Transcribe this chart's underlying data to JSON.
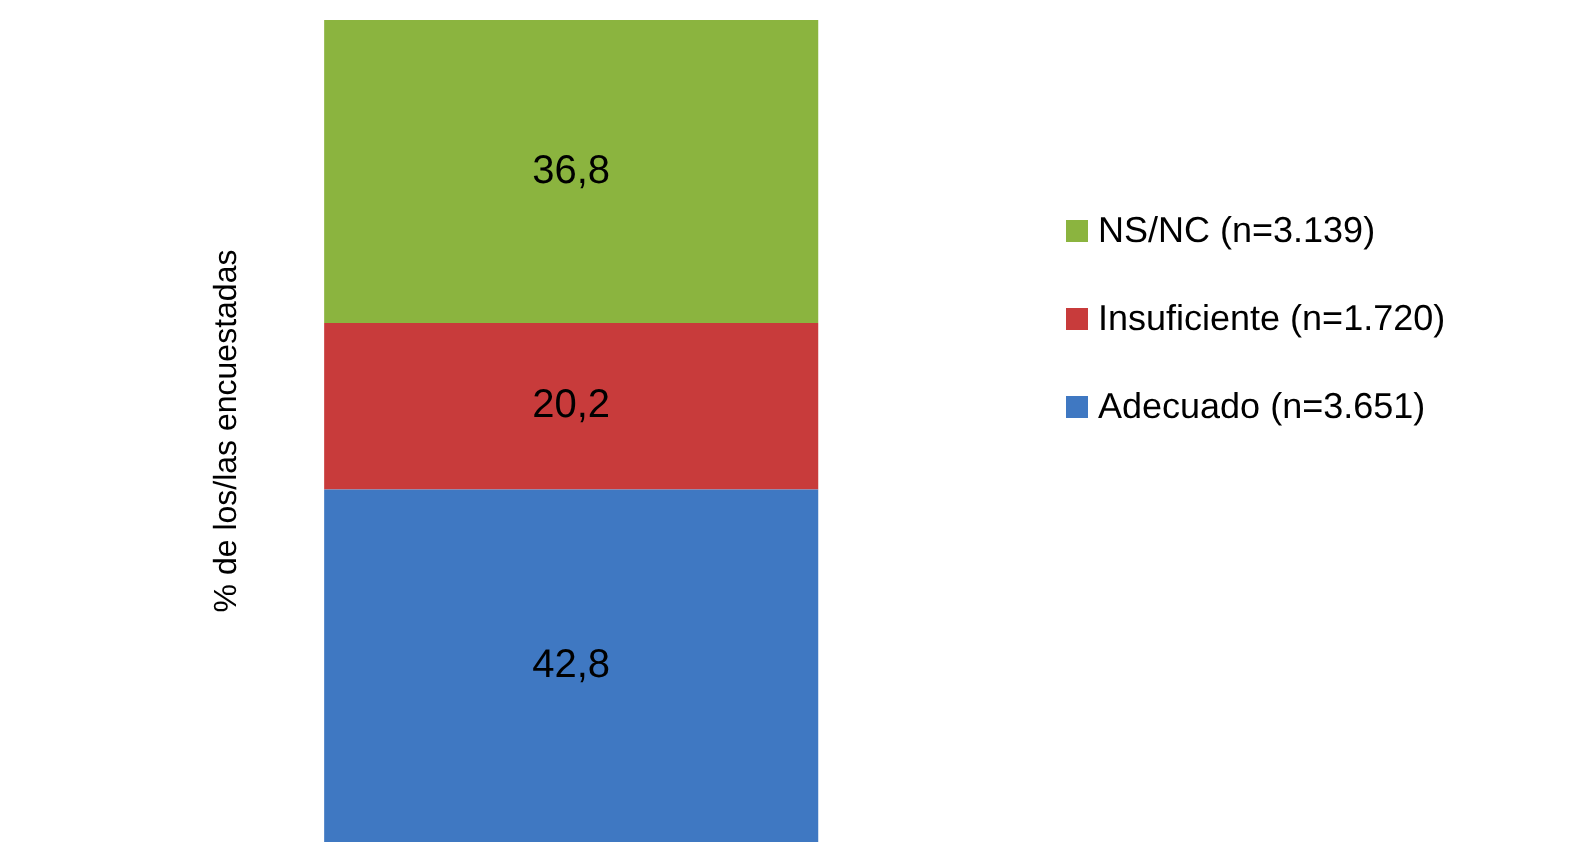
{
  "chart_data": {
    "type": "bar",
    "stacked": true,
    "ylabel": "% de los/las encuestadas",
    "categories": [
      null
    ],
    "legend": "right",
    "grid": false,
    "series": [
      {
        "name": "Adecuado (n=3.651)",
        "color": "#3f78c2",
        "values": [
          42.8
        ],
        "value_labels": [
          "42,8"
        ]
      },
      {
        "name": "Insuficiente (n=1.720)",
        "color": "#c83b3b",
        "values": [
          20.2
        ],
        "value_labels": [
          "20,2"
        ]
      },
      {
        "name": "NS/NC (n=3.139)",
        "color": "#8bb43f",
        "values": [
          36.8
        ],
        "value_labels": [
          "36,8"
        ]
      }
    ]
  }
}
